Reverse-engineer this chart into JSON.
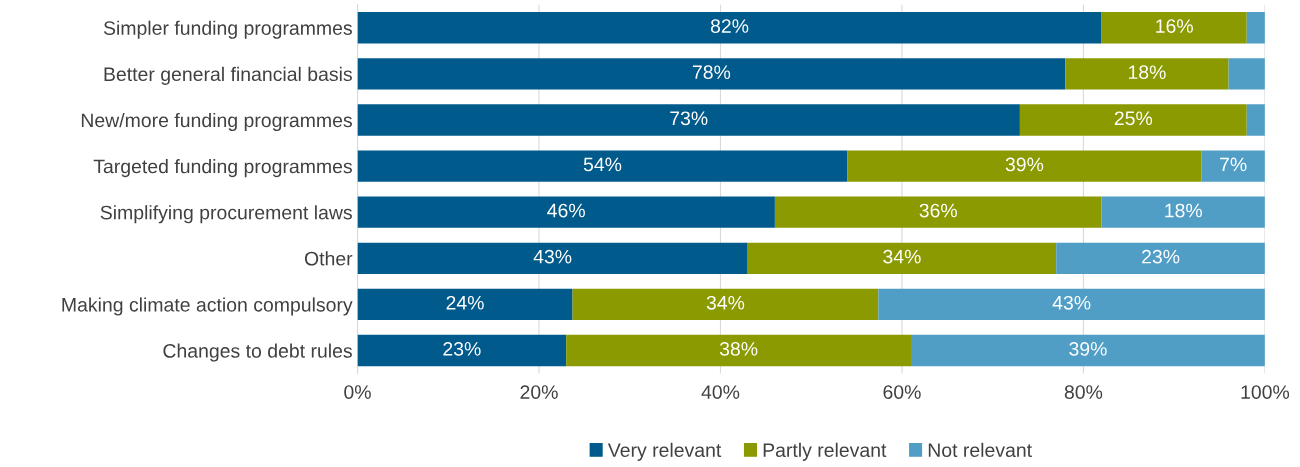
{
  "chart_data": {
    "type": "bar",
    "orientation": "horizontal",
    "stacked": true,
    "categories": [
      "Simpler funding programmes",
      "Better general financial basis",
      "New/more funding programmes",
      "Targeted funding programmes",
      "Simplifying procurement laws",
      "Other",
      "Making climate action compulsory",
      "Changes to debt rules"
    ],
    "series": [
      {
        "name": "Very relevant",
        "color": "#005a8b",
        "values": [
          82,
          78,
          73,
          54,
          46,
          43,
          23.7,
          23
        ],
        "value_labels": [
          "82%",
          "78%",
          "73%",
          "54%",
          "46%",
          "43%",
          "24%",
          "23%"
        ]
      },
      {
        "name": "Partly relevant",
        "color": "#8a9a00",
        "values": [
          16,
          18,
          25,
          39,
          36,
          34,
          33.7,
          38
        ],
        "value_labels": [
          "16%",
          "18%",
          "25%",
          "39%",
          "36%",
          "34%",
          "34%",
          "38%"
        ]
      },
      {
        "name": "Not relevant",
        "color": "#509ec6",
        "values": [
          2,
          4,
          2,
          7,
          18,
          23,
          42.6,
          39
        ],
        "value_labels": [
          null,
          null,
          null,
          "7%",
          "18%",
          "23%",
          "43%",
          "39%"
        ]
      }
    ],
    "xlim": [
      0,
      100
    ],
    "xticks": [
      {
        "value": 0,
        "label": "0%"
      },
      {
        "value": 20,
        "label": "20%"
      },
      {
        "value": 40,
        "label": "40%"
      },
      {
        "value": 60,
        "label": "60%"
      },
      {
        "value": 80,
        "label": "80%"
      },
      {
        "value": 100,
        "label": "100%"
      }
    ],
    "grid": "x",
    "legend": "bottom"
  }
}
